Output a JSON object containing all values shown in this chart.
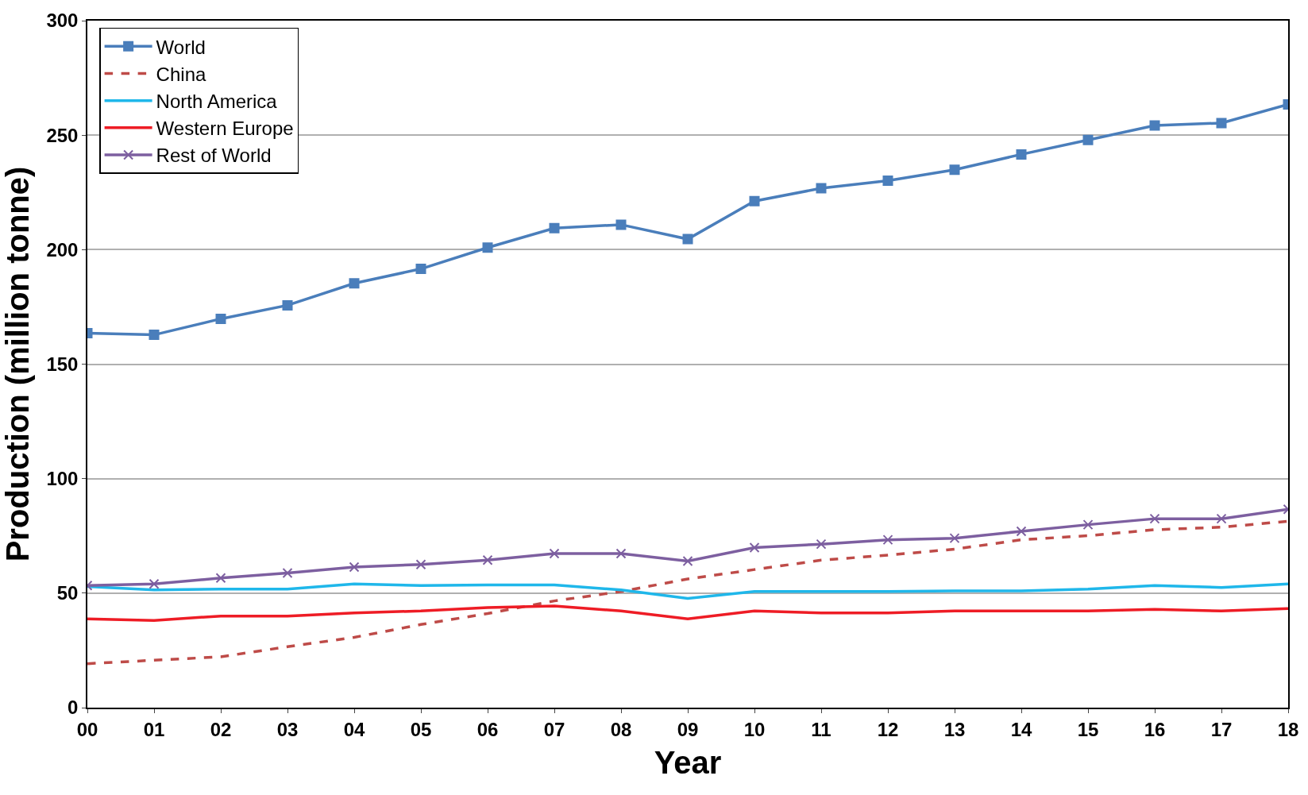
{
  "chart_data": {
    "type": "line",
    "xlabel": "Year",
    "ylabel": "Production (million tonne)",
    "categories": [
      "00",
      "01",
      "02",
      "03",
      "04",
      "05",
      "06",
      "07",
      "08",
      "09",
      "10",
      "11",
      "12",
      "13",
      "14",
      "15",
      "16",
      "17",
      "18"
    ],
    "series": [
      {
        "name": "World",
        "color": "#4a7ebb",
        "marker": "square",
        "line_style": "solid",
        "values": [
          163.5,
          162.8,
          169.8,
          175.7,
          185.3,
          191.6,
          200.9,
          209.4,
          210.9,
          204.6,
          221.2,
          226.8,
          230.1,
          234.9,
          241.6,
          247.9,
          254.2,
          255.3,
          263.4
        ]
      },
      {
        "name": "China",
        "color": "#be4b48",
        "marker": "none",
        "line_style": "dashed",
        "values": [
          19.2,
          20.7,
          22.2,
          26.6,
          30.7,
          36.3,
          41.1,
          46.6,
          50.7,
          56.2,
          60.3,
          64.4,
          66.6,
          69.2,
          73.3,
          75.1,
          77.7,
          78.8,
          81.4
        ]
      },
      {
        "name": "North America",
        "color": "#1fb7ea",
        "marker": "none",
        "line_style": "solid",
        "values": [
          52.9,
          51.4,
          51.8,
          51.8,
          54,
          53.3,
          53.6,
          53.6,
          51.4,
          47.7,
          50.7,
          50.7,
          50.7,
          51,
          51,
          51.8,
          53.3,
          52.5,
          54
        ]
      },
      {
        "name": "Western Europe",
        "color": "#ee1c25",
        "marker": "none",
        "line_style": "solid",
        "values": [
          38.8,
          38.1,
          40,
          40,
          41.4,
          42.2,
          43.7,
          44.4,
          42.2,
          38.8,
          42.2,
          41.4,
          41.4,
          42.2,
          42.2,
          42.2,
          42.9,
          42.2,
          43.3
        ]
      },
      {
        "name": "Rest of World",
        "color": "#7d5fa0",
        "marker": "cross",
        "line_style": "solid",
        "values": [
          53.3,
          54,
          56.6,
          58.8,
          61.4,
          62.5,
          64.4,
          67.3,
          67.3,
          64,
          69.9,
          71.4,
          73.3,
          74,
          77,
          79.9,
          82.5,
          82.5,
          86.6
        ]
      }
    ],
    "ylim": [
      0,
      300
    ],
    "yticks": [
      0,
      50,
      100,
      150,
      200,
      250,
      300
    ],
    "grid": "y",
    "legend": "top left"
  }
}
